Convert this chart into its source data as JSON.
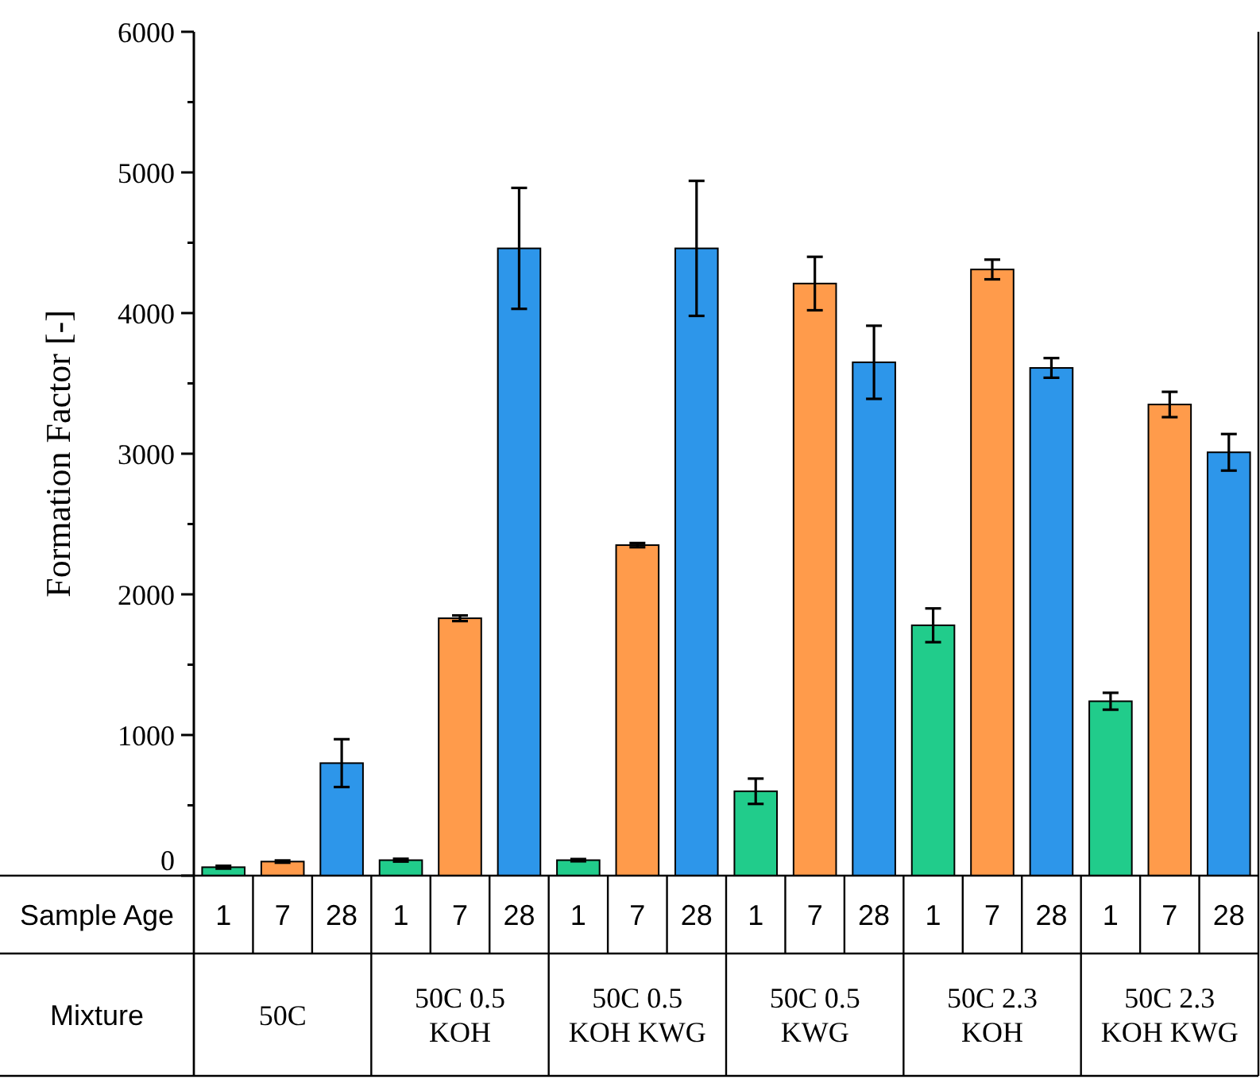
{
  "chart_data": {
    "type": "bar",
    "ylabel": "Formation Factor [-]",
    "xlabel": "Mixture",
    "annotations": [
      "Sample Age"
    ],
    "categories": [
      "50C",
      "50C 0.5 KOH",
      "50C 0.5 KOH KWG",
      "50C 0.5 KWG",
      "50C 2.3 KOH",
      "50C 2.3 KOH KWG"
    ],
    "series": [
      {
        "name": "1",
        "color": "#21cc8b",
        "values": [
          60,
          110,
          110,
          600,
          1780,
          1240
        ],
        "errors": [
          10,
          10,
          8,
          90,
          120,
          60
        ]
      },
      {
        "name": "7",
        "color": "#ff9b4b",
        "values": [
          100,
          1830,
          2350,
          4210,
          4310,
          3350
        ],
        "errors": [
          8,
          20,
          15,
          190,
          70,
          90
        ]
      },
      {
        "name": "28",
        "color": "#2d96ea",
        "values": [
          800,
          4460,
          4460,
          3650,
          3610,
          3010
        ],
        "errors": [
          170,
          430,
          480,
          260,
          70,
          130
        ]
      }
    ],
    "ylim": [
      0,
      6000
    ],
    "yticks": [
      0,
      {
        "value": 500,
        "label": null
      },
      1000,
      {
        "value": 1500,
        "label": null
      },
      2000,
      {
        "value": 2500,
        "label": null
      },
      3000,
      {
        "value": 3500,
        "label": null
      },
      4000,
      {
        "value": 4500,
        "label": null
      },
      5000,
      {
        "value": 5500,
        "label": null
      },
      6000
    ],
    "grid": false
  }
}
